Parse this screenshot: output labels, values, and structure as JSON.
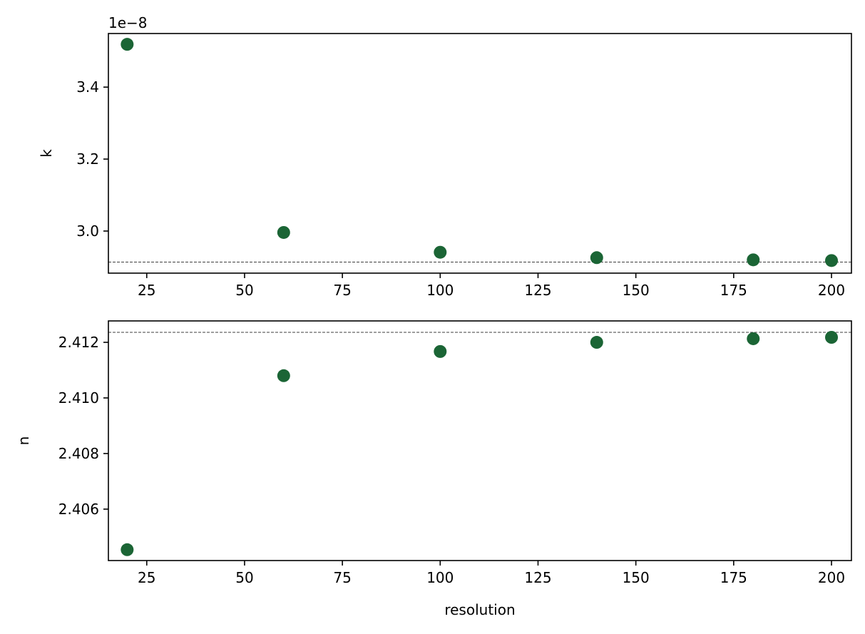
{
  "chart_data": [
    {
      "type": "scatter",
      "y_label": "k",
      "offset_label": "1e−8",
      "color": "#1b6535",
      "x": [
        20,
        60,
        100,
        140,
        180,
        200
      ],
      "values": [
        3.519,
        2.996,
        2.941,
        2.926,
        2.92,
        2.918
      ],
      "reference_line": 2.914,
      "xlim": [
        15.2,
        205.1
      ],
      "xticks": [
        25,
        50,
        75,
        100,
        125,
        150,
        175,
        200
      ],
      "ylim": [
        2.883,
        3.549
      ],
      "yticks": [
        {
          "value": 3,
          "label": "3.0"
        },
        3.2,
        3.4
      ]
    },
    {
      "type": "scatter",
      "y_label": "n",
      "x_label": "resolution",
      "color": "#1b6535",
      "x": [
        20,
        60,
        100,
        140,
        180,
        200
      ],
      "values": [
        2.40454,
        2.4108,
        2.41167,
        2.412,
        2.41213,
        2.41218
      ],
      "reference_line": 2.41236,
      "xlim": [
        15.2,
        205.1
      ],
      "xticks": [
        25,
        50,
        75,
        100,
        125,
        150,
        175,
        200
      ],
      "ylim": [
        2.40415,
        2.41277
      ],
      "yticks": [
        2.406,
        2.408,
        {
          "value": 2.41,
          "label": "2.410"
        },
        2.412
      ]
    }
  ]
}
